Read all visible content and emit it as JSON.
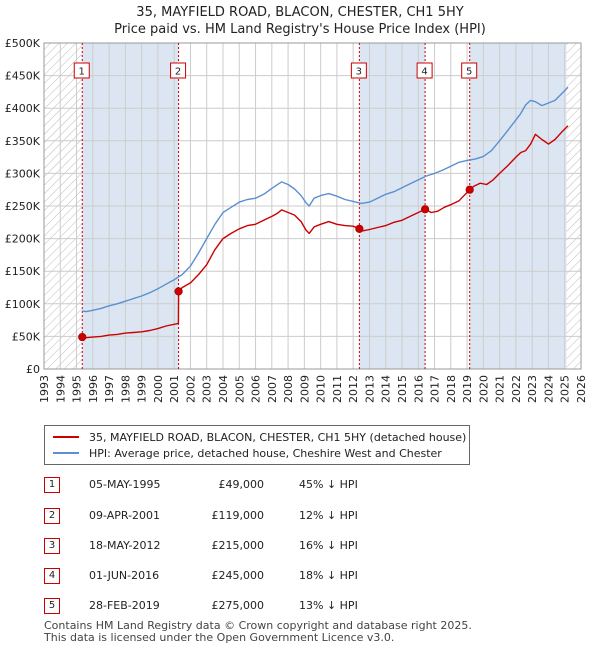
{
  "title": "35, MAYFIELD ROAD, BLACON, CHESTER, CH1 5HY",
  "subtitle": "Price paid vs. HM Land Registry's House Price Index (HPI)",
  "chart_data": {
    "type": "line",
    "xlim": [
      1993,
      2026
    ],
    "ylim": [
      0,
      500000
    ],
    "x_ticks": [
      1993,
      1994,
      1995,
      1996,
      1997,
      1998,
      1999,
      2000,
      2001,
      2002,
      2003,
      2004,
      2005,
      2006,
      2007,
      2008,
      2009,
      2010,
      2011,
      2012,
      2013,
      2014,
      2015,
      2016,
      2017,
      2018,
      2019,
      2020,
      2021,
      2022,
      2023,
      2024,
      2025,
      2026
    ],
    "y_ticks": [
      {
        "value": 0,
        "label": "£0"
      },
      {
        "value": 50000,
        "label": "£50K"
      },
      {
        "value": 100000,
        "label": "£100K"
      },
      {
        "value": 150000,
        "label": "£150K"
      },
      {
        "value": 200000,
        "label": "£200K"
      },
      {
        "value": 250000,
        "label": "£250K"
      },
      {
        "value": 300000,
        "label": "£300K"
      },
      {
        "value": 350000,
        "label": "£350K"
      },
      {
        "value": 400000,
        "label": "£400K"
      },
      {
        "value": 450000,
        "label": "£450K"
      },
      {
        "value": 500000,
        "label": "£500K"
      }
    ],
    "hatch_before": 1995.35,
    "hatch_after": 2025.1,
    "series": [
      {
        "name": "35, MAYFIELD ROAD, BLACON, CHESTER, CH1 5HY (detached house)",
        "color": "#cc0000",
        "x": [
          1995.35,
          1995.6,
          1996,
          1996.5,
          1997,
          1997.5,
          1998,
          1998.5,
          1999,
          1999.5,
          2000,
          2000.5,
          2001.26,
          2001.27,
          2001.5,
          2002,
          2002.5,
          2003,
          2003.5,
          2004,
          2004.5,
          2005,
          2005.5,
          2006,
          2006.5,
          2007,
          2007.3,
          2007.6,
          2008,
          2008.4,
          2008.8,
          2009.1,
          2009.3,
          2009.6,
          2010,
          2010.5,
          2011,
          2011.5,
          2012,
          2012.38,
          2012.6,
          2013,
          2013.5,
          2014,
          2014.5,
          2015,
          2015.5,
          2016,
          2016.42,
          2016.8,
          2017.2,
          2017.6,
          2018,
          2018.5,
          2019.16,
          2019.4,
          2019.8,
          2020.2,
          2020.6,
          2021,
          2021.5,
          2022,
          2022.3,
          2022.6,
          2022.9,
          2023.2,
          2023.6,
          2024,
          2024.4,
          2024.8,
          2025.2
        ],
        "y": [
          49000,
          48000,
          49000,
          50000,
          52000,
          53000,
          55000,
          56000,
          57000,
          59000,
          62000,
          66000,
          70000,
          119000,
          125000,
          132000,
          145000,
          160000,
          183000,
          200000,
          208000,
          215000,
          220000,
          222000,
          228000,
          234000,
          238000,
          244000,
          240000,
          236000,
          226000,
          213000,
          208000,
          218000,
          222000,
          226000,
          222000,
          220000,
          219000,
          215000,
          212000,
          214000,
          217000,
          220000,
          225000,
          228000,
          234000,
          240000,
          245000,
          240000,
          242000,
          248000,
          252000,
          258000,
          275000,
          280000,
          285000,
          283000,
          290000,
          300000,
          312000,
          325000,
          332000,
          335000,
          345000,
          360000,
          352000,
          345000,
          352000,
          363000,
          373000
        ]
      },
      {
        "name": "HPI: Average price, detached house, Cheshire West and Chester",
        "color": "#5b8fd0",
        "x": [
          1995.35,
          1995.6,
          1996,
          1996.5,
          1997,
          1997.5,
          1998,
          1998.5,
          1999,
          1999.5,
          2000,
          2000.5,
          2001,
          2001.5,
          2002,
          2002.5,
          2003,
          2003.5,
          2004,
          2004.5,
          2005,
          2005.5,
          2006,
          2006.5,
          2007,
          2007.3,
          2007.6,
          2008,
          2008.4,
          2008.8,
          2009.1,
          2009.3,
          2009.6,
          2010,
          2010.5,
          2011,
          2011.5,
          2012,
          2012.5,
          2013,
          2013.5,
          2014,
          2014.5,
          2015,
          2015.5,
          2016,
          2016.5,
          2017,
          2017.5,
          2018,
          2018.5,
          2019,
          2019.5,
          2020,
          2020.5,
          2021,
          2021.5,
          2022,
          2022.3,
          2022.6,
          2022.9,
          2023.2,
          2023.6,
          2024,
          2024.4,
          2024.8,
          2025.2
        ],
        "y": [
          89000,
          88000,
          90000,
          93000,
          97000,
          100000,
          104000,
          108000,
          112000,
          117000,
          123000,
          130000,
          137000,
          145000,
          158000,
          178000,
          200000,
          222000,
          240000,
          248000,
          256000,
          260000,
          262000,
          268000,
          277000,
          282000,
          287000,
          283000,
          276000,
          266000,
          255000,
          250000,
          262000,
          266000,
          269000,
          265000,
          260000,
          257000,
          254000,
          256000,
          262000,
          268000,
          272000,
          278000,
          284000,
          290000,
          296000,
          300000,
          305000,
          311000,
          317000,
          320000,
          322000,
          326000,
          335000,
          350000,
          366000,
          382000,
          392000,
          405000,
          412000,
          410000,
          404000,
          408000,
          412000,
          422000,
          432000
        ]
      }
    ],
    "sales": [
      {
        "num": "1",
        "x": 1995.35,
        "price": 49000
      },
      {
        "num": "2",
        "x": 2001.27,
        "price": 119000
      },
      {
        "num": "3",
        "x": 2012.38,
        "price": 215000
      },
      {
        "num": "4",
        "x": 2016.42,
        "price": 245000
      },
      {
        "num": "5",
        "x": 2019.16,
        "price": 275000
      }
    ]
  },
  "legend": {
    "red_label": "35, MAYFIELD ROAD, BLACON, CHESTER, CH1 5HY (detached house)",
    "blue_label": "HPI: Average price, detached house, Cheshire West and Chester"
  },
  "transactions": [
    {
      "num": "1",
      "date": "05-MAY-1995",
      "price": "£49,000",
      "hpi": "45% ↓ HPI"
    },
    {
      "num": "2",
      "date": "09-APR-2001",
      "price": "£119,000",
      "hpi": "12% ↓ HPI"
    },
    {
      "num": "3",
      "date": "18-MAY-2012",
      "price": "£215,000",
      "hpi": "16% ↓ HPI"
    },
    {
      "num": "4",
      "date": "01-JUN-2016",
      "price": "£245,000",
      "hpi": "18% ↓ HPI"
    },
    {
      "num": "5",
      "date": "28-FEB-2019",
      "price": "£275,000",
      "hpi": "13% ↓ HPI"
    }
  ],
  "footer": {
    "line1": "Contains HM Land Registry data © Crown copyright and database right 2025.",
    "line2": "This data is licensed under the Open Government Licence v3.0."
  },
  "colors": {
    "red": "#cc0000",
    "blue": "#5b8fd0",
    "shade": "#dce6f2",
    "grid": "#cccccc"
  }
}
